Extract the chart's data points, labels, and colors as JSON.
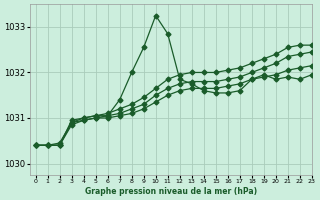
{
  "bg_color": "#cceedd",
  "grid_color": "#aaccbb",
  "line_color": "#1a5c2a",
  "xlabel": "Graphe pression niveau de la mer (hPa)",
  "xlim": [
    -0.5,
    23
  ],
  "ylim": [
    1029.75,
    1033.5
  ],
  "yticks": [
    1030,
    1031,
    1032,
    1033
  ],
  "xticks": [
    0,
    1,
    2,
    3,
    4,
    5,
    6,
    7,
    8,
    9,
    10,
    11,
    12,
    13,
    14,
    15,
    16,
    17,
    18,
    19,
    20,
    21,
    22,
    23
  ],
  "series_peak_x": [
    0,
    1,
    2,
    3,
    4,
    5,
    6,
    7,
    8,
    9,
    10,
    11,
    12,
    13,
    14,
    15,
    16,
    17,
    18,
    19,
    20,
    21,
    22,
    23
  ],
  "series_peak_y": [
    1030.4,
    1030.4,
    1030.45,
    1030.9,
    1031.0,
    1031.05,
    1031.05,
    1031.4,
    1032.0,
    1032.55,
    1033.25,
    1032.85,
    1031.85,
    1031.75,
    1031.6,
    1031.55,
    1031.55,
    1031.6,
    1031.85,
    1031.95,
    1031.85,
    1031.9,
    1031.85,
    1031.95
  ],
  "series_low_x": [
    0,
    1,
    2,
    3,
    4,
    5,
    6,
    7,
    8,
    9,
    10,
    11,
    12,
    13,
    14,
    15,
    16,
    17,
    18,
    19,
    20,
    21,
    22,
    23
  ],
  "series_low_y": [
    1030.4,
    1030.4,
    1030.4,
    1030.85,
    1030.95,
    1031.0,
    1031.0,
    1031.05,
    1031.1,
    1031.2,
    1031.35,
    1031.5,
    1031.6,
    1031.65,
    1031.65,
    1031.65,
    1031.7,
    1031.75,
    1031.85,
    1031.9,
    1031.95,
    1032.05,
    1032.1,
    1032.15
  ],
  "series_mid_x": [
    0,
    1,
    2,
    3,
    4,
    5,
    6,
    7,
    8,
    9,
    10,
    11,
    12,
    13,
    14,
    15,
    16,
    17,
    18,
    19,
    20,
    21,
    22,
    23
  ],
  "series_mid_y": [
    1030.4,
    1030.4,
    1030.4,
    1030.9,
    1030.95,
    1031.0,
    1031.05,
    1031.1,
    1031.2,
    1031.3,
    1031.5,
    1031.65,
    1031.75,
    1031.8,
    1031.8,
    1031.8,
    1031.85,
    1031.9,
    1032.0,
    1032.1,
    1032.2,
    1032.35,
    1032.4,
    1032.45
  ],
  "series_high_x": [
    0,
    1,
    2,
    3,
    4,
    5,
    6,
    7,
    8,
    9,
    10,
    11,
    12,
    13,
    14,
    15,
    16,
    17,
    18,
    19,
    20,
    21,
    22,
    23
  ],
  "series_high_y": [
    1030.4,
    1030.4,
    1030.4,
    1030.95,
    1031.0,
    1031.05,
    1031.1,
    1031.2,
    1031.3,
    1031.45,
    1031.65,
    1031.85,
    1031.95,
    1032.0,
    1032.0,
    1032.0,
    1032.05,
    1032.1,
    1032.2,
    1032.3,
    1032.4,
    1032.55,
    1032.6,
    1032.6
  ]
}
